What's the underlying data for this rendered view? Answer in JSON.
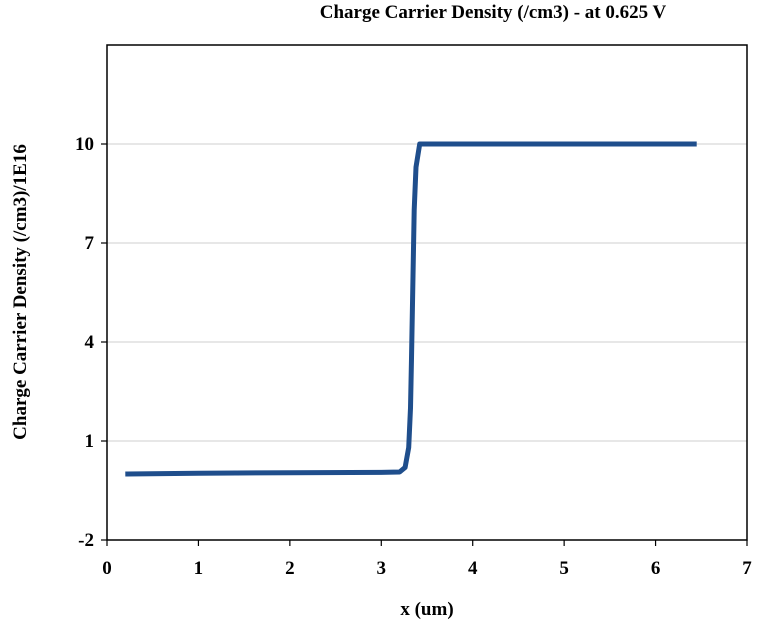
{
  "chart_data": {
    "type": "line",
    "title": "Charge Carrier Density (/cm3) - at 0.625 V",
    "xlabel": "x (um)",
    "ylabel": "Charge Carrier Density (/cm3)/1E16",
    "xlim": [
      0,
      7
    ],
    "ylim": [
      -2,
      13
    ],
    "xticks": [
      0,
      1,
      2,
      3,
      4,
      5,
      6,
      7
    ],
    "yticks": [
      -2,
      1,
      4,
      7,
      10
    ],
    "grid": "horizontal",
    "legend": "none",
    "series": [
      {
        "color": "#1f4e8c",
        "x": [
          0.2,
          1.0,
          2.0,
          3.0,
          3.2,
          3.26,
          3.3,
          3.32,
          3.33,
          3.34,
          3.35,
          3.36,
          3.38,
          3.42,
          3.5,
          4.0,
          5.0,
          6.0,
          6.45
        ],
        "y": [
          0.0,
          0.02,
          0.04,
          0.05,
          0.06,
          0.2,
          0.8,
          2.0,
          3.5,
          5.0,
          6.5,
          8.0,
          9.3,
          10.0,
          10.0,
          10.0,
          10.0,
          10.0,
          10.0
        ]
      }
    ]
  }
}
